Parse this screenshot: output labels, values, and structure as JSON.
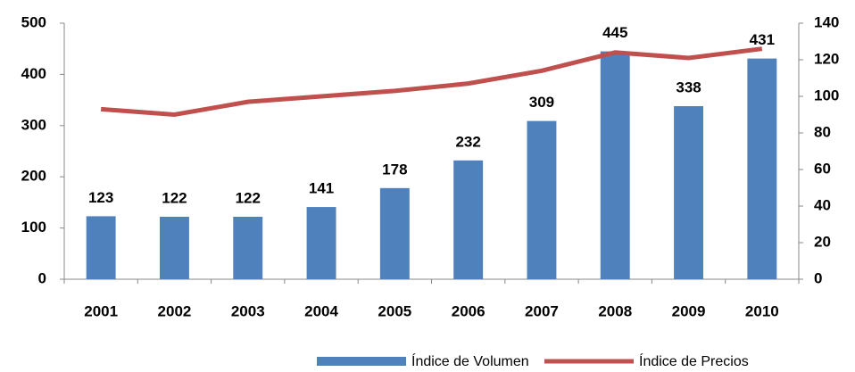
{
  "chart_data": {
    "type": "bar-line",
    "categories": [
      "2001",
      "2002",
      "2003",
      "2004",
      "2005",
      "2006",
      "2007",
      "2008",
      "2009",
      "2010"
    ],
    "series": [
      {
        "name": "Índice de Volumen",
        "type": "bar",
        "color": "#4f81bd",
        "values": [
          123,
          122,
          122,
          141,
          178,
          232,
          309,
          445,
          338,
          431
        ]
      },
      {
        "name": "Índice de Precios",
        "type": "line",
        "color": "#c0504d",
        "axis": "y2",
        "values": [
          93,
          90,
          97,
          100,
          103,
          107,
          114,
          124,
          121,
          126
        ]
      }
    ],
    "ylim": [
      0,
      500
    ],
    "yticks": [
      0,
      100,
      200,
      300,
      400,
      500
    ],
    "y2lim": [
      0,
      140
    ],
    "y2ticks": [
      0,
      20,
      40,
      60,
      80,
      100,
      120,
      140
    ],
    "legend": "bottom"
  }
}
